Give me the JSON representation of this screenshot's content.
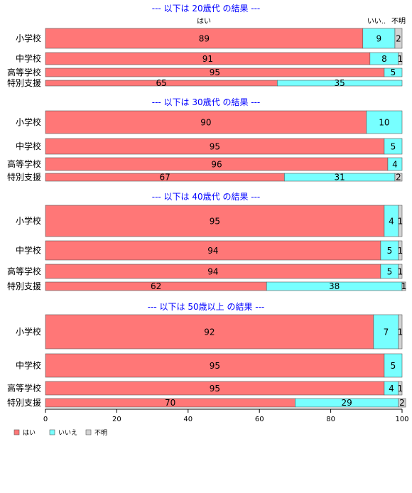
{
  "chart_data": {
    "type": "bar",
    "orientation": "horizontal",
    "stacked": "percent",
    "categories": [
      "小学校",
      "中学校",
      "高等学校",
      "特別支援"
    ],
    "series_meta": [
      {
        "name": "はい",
        "color": "#ff7777"
      },
      {
        "name": "いいえ",
        "color": "#77ffff"
      },
      {
        "name": "不明",
        "color": "#d3d3d3"
      }
    ],
    "column_headers": [
      "はい",
      "いい..",
      "不明"
    ],
    "xlim": [
      0,
      100
    ],
    "xticks": [
      "0",
      "20",
      "40",
      "60",
      "80",
      "100"
    ],
    "legend_position": "bottom-left",
    "panels": [
      {
        "title": "--- 以下は 20歳代 の結果 ---",
        "values": [
          [
            89,
            9,
            2
          ],
          [
            91,
            8,
            1
          ],
          [
            95,
            5,
            0
          ],
          [
            65,
            35,
            0
          ]
        ]
      },
      {
        "title": "--- 以下は 30歳代 の結果 ---",
        "values": [
          [
            90,
            10,
            0
          ],
          [
            95,
            5,
            0
          ],
          [
            96,
            4,
            0
          ],
          [
            67,
            31,
            2
          ]
        ]
      },
      {
        "title": "--- 以下は 40歳代 の結果 ---",
        "values": [
          [
            95,
            4,
            1
          ],
          [
            94,
            5,
            1
          ],
          [
            94,
            5,
            1
          ],
          [
            62,
            38,
            1
          ]
        ]
      },
      {
        "title": "--- 以下は 50歳以上 の結果 ---",
        "values": [
          [
            92,
            7,
            1
          ],
          [
            95,
            5,
            0
          ],
          [
            95,
            4,
            1
          ],
          [
            70,
            29,
            2
          ]
        ]
      }
    ]
  }
}
